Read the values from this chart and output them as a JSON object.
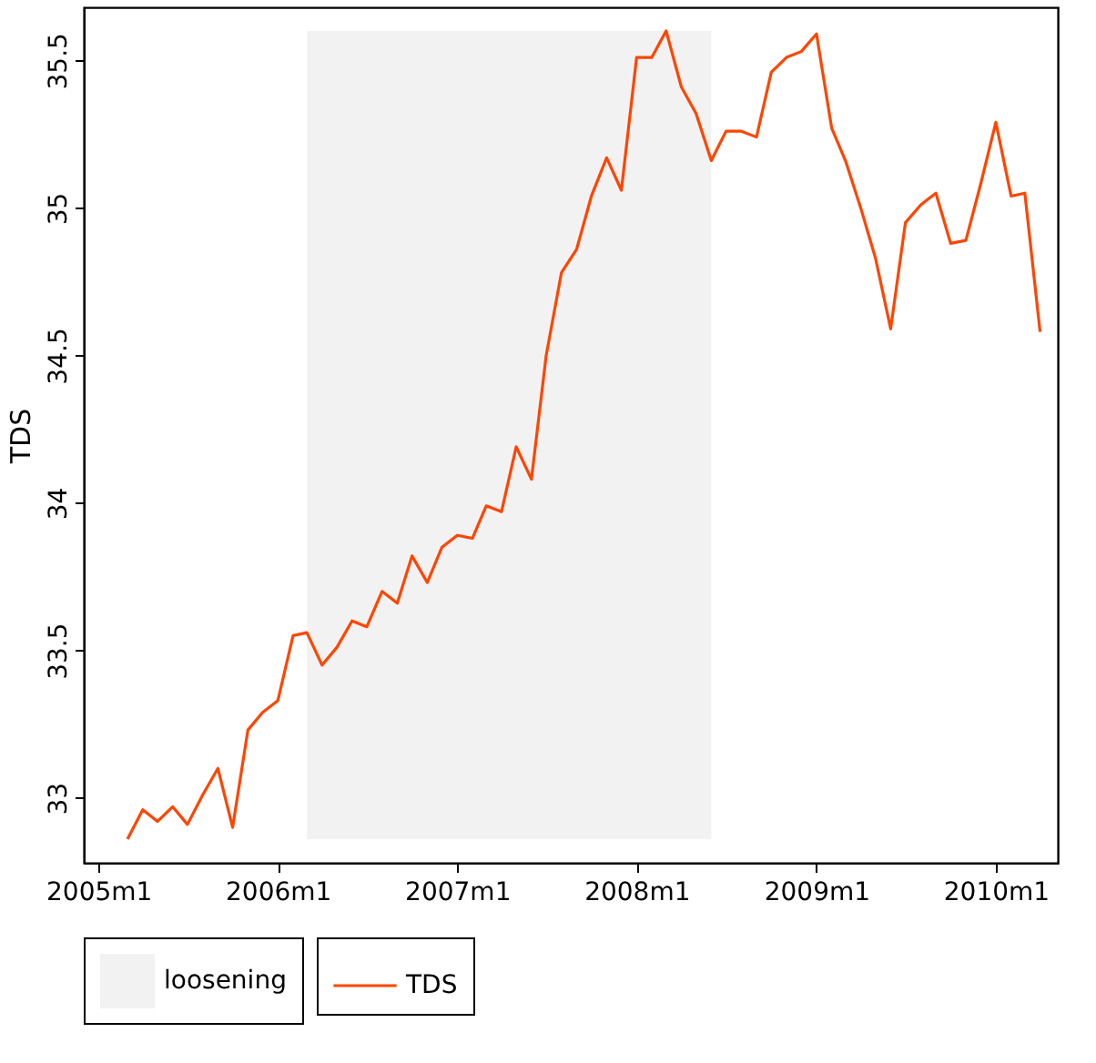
{
  "chart_data": {
    "type": "line",
    "ylabel": "TDS",
    "x": [
      "2005-03",
      "2005-04",
      "2005-05",
      "2005-06",
      "2005-07",
      "2005-08",
      "2005-09",
      "2005-10",
      "2005-11",
      "2005-12",
      "2006-01",
      "2006-02",
      "2006-03",
      "2006-04",
      "2006-05",
      "2006-06",
      "2006-07",
      "2006-08",
      "2006-09",
      "2006-10",
      "2006-11",
      "2006-12",
      "2007-01",
      "2007-02",
      "2007-03",
      "2007-04",
      "2007-05",
      "2007-06",
      "2007-07",
      "2007-08",
      "2007-09",
      "2007-10",
      "2007-11",
      "2007-12",
      "2008-01",
      "2008-02",
      "2008-03",
      "2008-04",
      "2008-05",
      "2008-06",
      "2008-07",
      "2008-08",
      "2008-09",
      "2008-10",
      "2008-11",
      "2008-12",
      "2009-01",
      "2009-02",
      "2009-03",
      "2009-04",
      "2009-05",
      "2009-06",
      "2009-07",
      "2009-08",
      "2009-09",
      "2009-10",
      "2009-11",
      "2009-12",
      "2010-01",
      "2010-02",
      "2010-03",
      "2010-04"
    ],
    "series": [
      {
        "name": "TDS",
        "color": "#ff4500",
        "values": [
          32.86,
          32.96,
          32.92,
          32.97,
          32.91,
          33.01,
          33.1,
          32.9,
          33.23,
          33.29,
          33.33,
          33.55,
          33.56,
          33.45,
          33.51,
          33.6,
          33.58,
          33.7,
          33.66,
          33.82,
          33.73,
          33.85,
          33.89,
          33.88,
          33.99,
          33.97,
          34.19,
          34.08,
          34.5,
          34.78,
          34.86,
          35.04,
          35.17,
          35.06,
          35.51,
          35.51,
          35.6,
          35.41,
          35.32,
          35.16,
          35.26,
          35.26,
          35.24,
          35.46,
          35.51,
          35.53,
          35.59,
          35.27,
          35.16,
          35.0,
          34.83,
          34.59,
          34.95,
          35.01,
          35.05,
          34.88,
          34.89,
          35.08,
          35.29,
          35.04,
          35.05,
          34.58
        ]
      }
    ],
    "xlim": [
      "2004-12-02",
      "2010-05-07"
    ],
    "xticks": [
      {
        "value": "2005-01",
        "label": "2005m1"
      },
      {
        "value": "2006-01",
        "label": "2006m1"
      },
      {
        "value": "2007-01",
        "label": "2007m1"
      },
      {
        "value": "2008-01",
        "label": "2008m1"
      },
      {
        "value": "2009-01",
        "label": "2009m1"
      },
      {
        "value": "2010-01",
        "label": "2010m1"
      }
    ],
    "ylim": [
      32.78,
      35.68
    ],
    "yticks": [
      33,
      33.5,
      34,
      34.5,
      35,
      35.5
    ],
    "bands": [
      {
        "axis": "x",
        "from": "2006-03",
        "to": "2008-06",
        "label": "loosening",
        "color": "#f2f2f2"
      }
    ],
    "grid": false,
    "legend": "bottom",
    "line_style": "solid"
  }
}
